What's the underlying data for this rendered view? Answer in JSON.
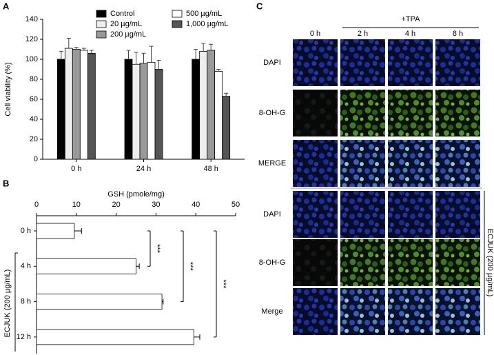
{
  "chart_data": [
    {
      "type": "bar",
      "label": "A",
      "y_label": "Cell viability (%)",
      "categories": [
        "0 h",
        "24 h",
        "48 h"
      ],
      "ylim": [
        0,
        140
      ],
      "yticks": [
        0,
        20,
        40,
        60,
        80,
        100,
        120,
        140
      ],
      "series": [
        {
          "name": "Control",
          "color": "#000000",
          "values": [
            100,
            100,
            100
          ],
          "errors": [
            8,
            9,
            10
          ]
        },
        {
          "name": "20 µg/mL",
          "color": "#eeeeee",
          "values": [
            111,
            95,
            108
          ],
          "errors": [
            10,
            12,
            8
          ]
        },
        {
          "name": "200 µg/mL",
          "color": "#999999",
          "values": [
            110,
            96,
            109
          ],
          "errors": [
            2,
            10,
            6
          ]
        },
        {
          "name": "500 µg/mL",
          "color": "#ffffff",
          "values": [
            109,
            97,
            88
          ],
          "errors": [
            2,
            16,
            2
          ]
        },
        {
          "name": "1,000 µg/mL",
          "color": "#555555",
          "values": [
            106,
            90,
            63
          ],
          "errors": [
            3,
            9,
            3
          ]
        }
      ]
    },
    {
      "type": "hbar",
      "label": "B",
      "x_label": "GSH (pmole/mg)",
      "categories": [
        "0 h",
        "4 h",
        "8 h",
        "12 h"
      ],
      "values": [
        9.5,
        25,
        31.5,
        39.5
      ],
      "errors": [
        1.8,
        0.8,
        0.3,
        1.5
      ],
      "color": "#ffffff",
      "xlim": [
        0,
        50
      ],
      "xticks": [
        0,
        10,
        20,
        30,
        40,
        50
      ],
      "group_label": "ECJUK (200 µg/mL)",
      "annotations": [
        {
          "text": "***",
          "from": "0 h",
          "to": "4 h"
        },
        {
          "text": "***",
          "from": "0 h",
          "to": "8 h"
        },
        {
          "text": "***",
          "from": "0 h",
          "to": "12 h"
        }
      ]
    }
  ],
  "micrographs": {
    "label": "C",
    "treatment": "+TPA",
    "columns": [
      "0 h",
      "2 h",
      "4 h",
      "8 h"
    ],
    "rows": [
      "DAPI",
      "8-OH-G",
      "MERGE",
      "DAPI",
      "8-OH-G",
      "Merge"
    ],
    "group_label": "ECJUK (200 µg/mL)"
  }
}
